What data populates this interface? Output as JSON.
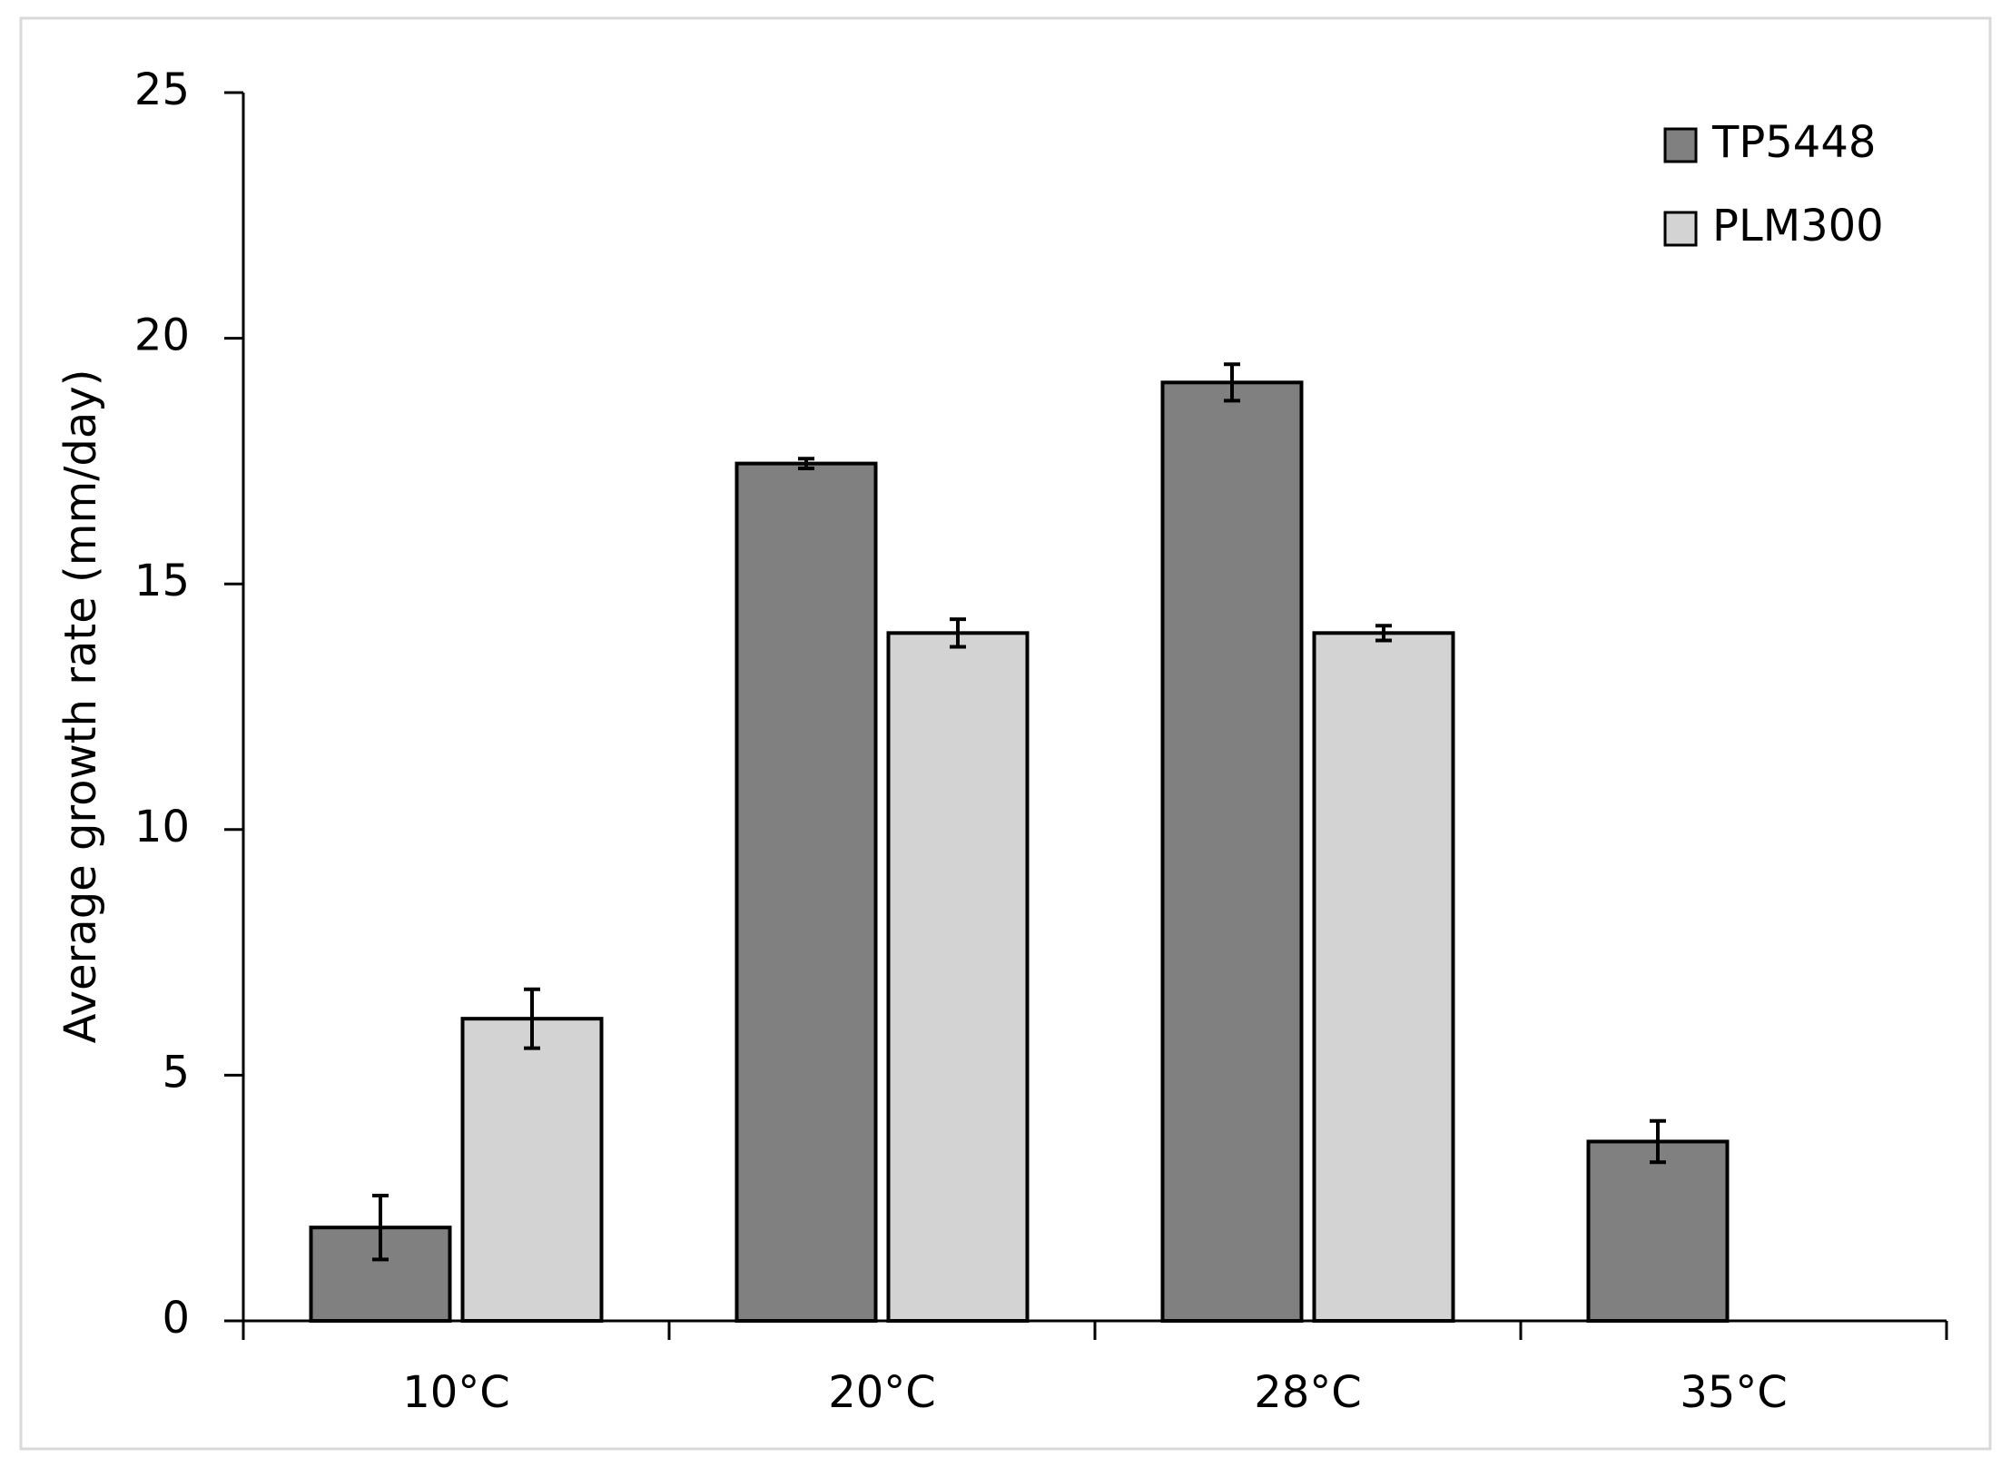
{
  "chart_data": {
    "type": "bar",
    "y_label": "Average growth rate (mm/day)",
    "categories": [
      "10°C",
      "20°C",
      "28°C",
      "35°C"
    ],
    "series": [
      {
        "name": "TP5448",
        "color": "#808080",
        "values": [
          1.9,
          17.45,
          19.1,
          3.65
        ],
        "errors": [
          0.65,
          0.1,
          0.37,
          0.42
        ]
      },
      {
        "name": "PLM300",
        "color": "#d3d3d3",
        "values": [
          6.15,
          14.0,
          14.0,
          null
        ],
        "errors": [
          0.6,
          0.28,
          0.15,
          null
        ]
      }
    ],
    "ylim": [
      0,
      25
    ],
    "yticks": [
      0,
      5,
      10,
      15,
      20,
      25
    ],
    "grid": false,
    "legend": "top-right"
  }
}
